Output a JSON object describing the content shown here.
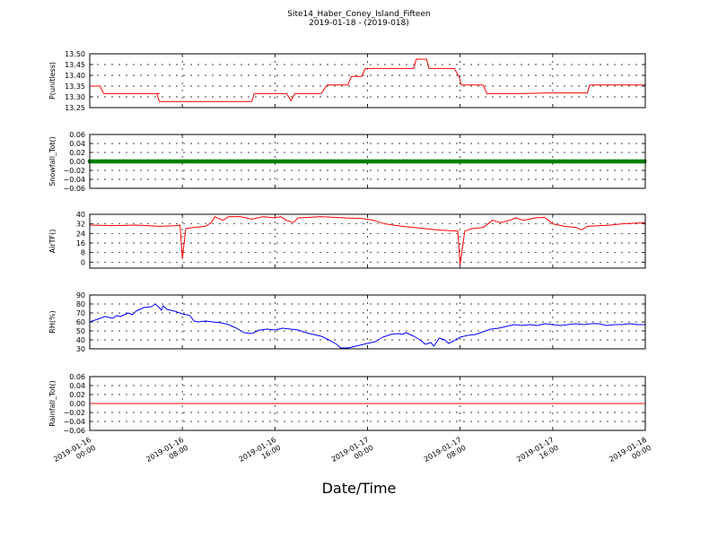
{
  "chart_data": {
    "title": "Site14_Haber_Coney_Island_Fifteen",
    "subtitle": "2019-01-18 - (2019-018)",
    "xlabel": "Date/Time",
    "x_ticks": [
      {
        "line1": "2019-01-16",
        "line2": "00:00",
        "hours": 0
      },
      {
        "line1": "2019-01-16",
        "line2": "08:00",
        "hours": 8
      },
      {
        "line1": "2019-01-16",
        "line2": "16:00",
        "hours": 16
      },
      {
        "line1": "2019-01-17",
        "line2": "00:00",
        "hours": 24
      },
      {
        "line1": "2019-01-17",
        "line2": "08:00",
        "hours": 32
      },
      {
        "line1": "2019-01-17",
        "line2": "16:00",
        "hours": 40
      },
      {
        "line1": "2019-01-18",
        "line2": "00:00",
        "hours": 48
      }
    ],
    "xlim_hours": [
      0,
      48
    ],
    "grid": true,
    "panels": [
      {
        "id": "p",
        "type": "line",
        "ylabel": "P(unitless)",
        "ylim": [
          13.25,
          13.5
        ],
        "yticks": [
          "13.25",
          "13.30",
          "13.35",
          "13.40",
          "13.45",
          "13.50"
        ],
        "ytick_values": [
          13.25,
          13.3,
          13.35,
          13.4,
          13.45,
          13.5
        ],
        "color": "#ff0000",
        "series": [
          [
            0,
            13.35
          ],
          [
            0.9,
            13.35
          ],
          [
            1.2,
            13.315
          ],
          [
            4,
            13.315
          ],
          [
            6,
            13.315
          ],
          [
            5.8,
            13.315
          ],
          [
            6.0,
            13.278
          ],
          [
            8,
            13.278
          ],
          [
            10,
            13.278
          ],
          [
            12,
            13.278
          ],
          [
            14,
            13.278
          ],
          [
            14.2,
            13.315
          ],
          [
            16,
            13.315
          ],
          [
            17.0,
            13.315
          ],
          [
            17.4,
            13.282
          ],
          [
            17.7,
            13.315
          ],
          [
            20,
            13.315
          ],
          [
            20.5,
            13.355
          ],
          [
            22.3,
            13.355
          ],
          [
            22.6,
            13.395
          ],
          [
            23.5,
            13.395
          ],
          [
            23.8,
            13.432
          ],
          [
            25,
            13.432
          ],
          [
            27,
            13.432
          ],
          [
            28.0,
            13.432
          ],
          [
            28.2,
            13.475
          ],
          [
            29.1,
            13.475
          ],
          [
            29.3,
            13.432
          ],
          [
            31,
            13.432
          ],
          [
            31.5,
            13.432
          ],
          [
            31.9,
            13.395
          ],
          [
            32.1,
            13.355
          ],
          [
            34.0,
            13.355
          ],
          [
            34.3,
            13.315
          ],
          [
            37,
            13.315
          ],
          [
            40,
            13.318
          ],
          [
            42,
            13.318
          ],
          [
            43.0,
            13.318
          ],
          [
            43.2,
            13.355
          ],
          [
            46,
            13.355
          ],
          [
            48,
            13.355
          ]
        ]
      },
      {
        "id": "snow",
        "type": "scatter",
        "ylabel": "Snowfall_Tot()",
        "ylim": [
          -0.06,
          0.06
        ],
        "yticks": [
          "−0.06",
          "−0.04",
          "−0.02",
          "0.00",
          "0.02",
          "0.04",
          "0.06"
        ],
        "ytick_values": [
          -0.06,
          -0.04,
          -0.02,
          0.0,
          0.02,
          0.04,
          0.06
        ],
        "color": "#008000",
        "constant_value": 0.0
      },
      {
        "id": "airt",
        "type": "line",
        "ylabel": "AirTF()",
        "ylim": [
          -5,
          40
        ],
        "yticks": [
          "0",
          "8",
          "16",
          "24",
          "32",
          "40"
        ],
        "ytick_values": [
          0,
          8,
          16,
          24,
          32,
          40
        ],
        "color": "#ff0000",
        "series": [
          [
            0,
            31
          ],
          [
            2,
            30.5
          ],
          [
            4,
            31
          ],
          [
            6,
            30
          ],
          [
            7.5,
            30.5
          ],
          [
            7.8,
            31
          ],
          [
            8.0,
            3
          ],
          [
            8.3,
            28
          ],
          [
            9,
            29
          ],
          [
            10,
            30
          ],
          [
            10.5,
            33
          ],
          [
            10.8,
            38
          ],
          [
            11.5,
            35
          ],
          [
            12,
            38
          ],
          [
            13,
            38
          ],
          [
            14,
            36
          ],
          [
            15,
            38
          ],
          [
            16,
            37
          ],
          [
            16.5,
            38
          ],
          [
            17,
            35
          ],
          [
            17.6,
            33
          ],
          [
            18,
            37
          ],
          [
            20,
            38
          ],
          [
            22,
            37
          ],
          [
            23.5,
            36.5
          ],
          [
            24.5,
            35
          ],
          [
            25.5,
            32
          ],
          [
            27,
            30
          ],
          [
            28,
            29
          ],
          [
            30,
            27
          ],
          [
            31.6,
            26
          ],
          [
            31.8,
            26
          ],
          [
            32.0,
            -2
          ],
          [
            32.4,
            26
          ],
          [
            33,
            28
          ],
          [
            34,
            29
          ],
          [
            34.8,
            35
          ],
          [
            35.5,
            33
          ],
          [
            36.3,
            35
          ],
          [
            36.8,
            37
          ],
          [
            37.5,
            35
          ],
          [
            38.5,
            37
          ],
          [
            39.3,
            37.5
          ],
          [
            40.0,
            32
          ],
          [
            41,
            30
          ],
          [
            42,
            29
          ],
          [
            42.5,
            27
          ],
          [
            43,
            30
          ],
          [
            45,
            31
          ],
          [
            46,
            32
          ],
          [
            47,
            32.5
          ],
          [
            48,
            33
          ]
        ]
      },
      {
        "id": "rh",
        "type": "line",
        "ylabel": "RH(%)",
        "ylim": [
          30,
          90
        ],
        "yticks": [
          "30",
          "40",
          "50",
          "60",
          "70",
          "80",
          "90"
        ],
        "ytick_values": [
          30,
          40,
          50,
          60,
          70,
          80,
          90
        ],
        "color": "#0000ff",
        "series": [
          [
            0,
            60
          ],
          [
            1,
            63
          ],
          [
            2,
            66
          ],
          [
            3,
            64
          ],
          [
            3.5,
            67
          ],
          [
            4,
            66
          ],
          [
            5,
            70
          ],
          [
            5.5,
            68
          ],
          [
            6,
            72
          ],
          [
            7,
            76
          ],
          [
            8,
            77
          ],
          [
            8.5,
            80
          ],
          [
            9,
            76
          ],
          [
            9.3,
            73
          ],
          [
            9.5,
            78
          ],
          [
            10,
            74
          ],
          [
            11,
            72
          ],
          [
            12,
            69
          ],
          [
            13,
            67
          ],
          [
            13.5,
            61
          ],
          [
            14,
            60
          ],
          [
            15,
            61
          ],
          [
            16,
            60
          ],
          [
            17,
            59
          ],
          [
            18,
            57
          ],
          [
            19,
            53
          ],
          [
            20,
            48
          ],
          [
            21,
            47
          ],
          [
            22,
            51
          ],
          [
            23,
            52
          ],
          [
            24,
            51
          ],
          [
            25,
            53
          ],
          [
            26,
            52
          ],
          [
            27,
            51
          ],
          [
            28,
            48
          ],
          [
            29,
            46
          ],
          [
            30,
            44
          ],
          [
            31,
            40
          ],
          [
            32,
            35
          ],
          [
            32.5,
            31
          ],
          [
            33.5,
            31
          ],
          [
            34.5,
            33
          ],
          [
            35.5,
            35
          ],
          [
            37,
            38
          ],
          [
            38,
            43
          ],
          [
            39,
            46
          ],
          [
            40,
            47
          ],
          [
            40.5,
            46
          ],
          [
            41,
            48
          ],
          [
            42,
            44
          ],
          [
            42.8,
            40
          ],
          [
            43.5,
            35
          ],
          [
            44.2,
            37
          ],
          [
            44.6,
            33
          ],
          [
            45.3,
            42
          ],
          [
            46,
            40
          ],
          [
            46.5,
            36
          ],
          [
            47.2,
            39
          ],
          [
            48,
            43
          ],
          [
            49,
            45
          ],
          [
            50,
            46
          ],
          [
            51,
            49
          ],
          [
            52,
            52
          ],
          [
            53,
            53
          ],
          [
            54,
            55
          ],
          [
            55,
            57
          ],
          [
            56,
            56
          ],
          [
            57,
            57
          ],
          [
            58,
            56
          ],
          [
            59,
            58
          ],
          [
            60,
            57
          ],
          [
            61,
            56
          ],
          [
            62,
            57
          ],
          [
            63,
            58
          ],
          [
            64,
            57
          ],
          [
            65,
            58
          ],
          [
            66,
            58
          ],
          [
            67,
            56
          ],
          [
            68,
            57
          ],
          [
            69,
            57
          ],
          [
            70,
            58
          ],
          [
            71,
            57
          ],
          [
            72,
            57
          ]
        ],
        "series_x_max": 72
      },
      {
        "id": "rain",
        "type": "line",
        "ylabel": "Rainfall_Tot()",
        "ylim": [
          -0.06,
          0.06
        ],
        "yticks": [
          "−0.06",
          "−0.04",
          "−0.02",
          "0.00",
          "0.02",
          "0.04",
          "0.06"
        ],
        "ytick_values": [
          -0.06,
          -0.04,
          -0.02,
          0.0,
          0.02,
          0.04,
          0.06
        ],
        "color": "#ff0000",
        "constant_value": 0.0
      }
    ]
  }
}
